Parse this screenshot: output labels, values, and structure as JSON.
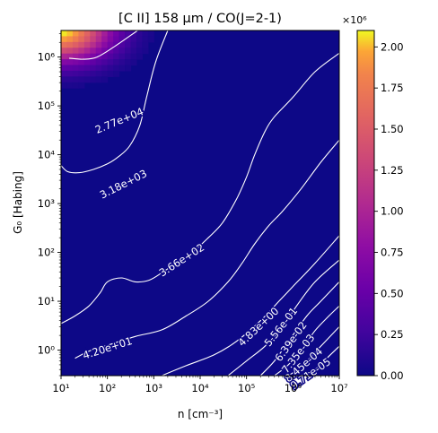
{
  "chart_data": {
    "type": "heatmap",
    "title": "[C II] 158 μm / CO(J=2-1)",
    "xlabel": "n [cm⁻³]",
    "ylabel": "G₀ [Habing]",
    "x_scale": "log",
    "y_scale": "log",
    "xlim": [
      10,
      10000000
    ],
    "ylim": [
      0.3,
      3500000
    ],
    "x_ticks": [
      {
        "value": 10,
        "label": "10¹"
      },
      {
        "value": 100,
        "label": "10²"
      },
      {
        "value": 1000,
        "label": "10³"
      },
      {
        "value": 10000,
        "label": "10⁴"
      },
      {
        "value": 100000,
        "label": "10⁵"
      },
      {
        "value": 1000000,
        "label": "10⁶"
      },
      {
        "value": 10000000,
        "label": "10⁷"
      }
    ],
    "y_ticks": [
      {
        "value": 1,
        "label": "10⁰"
      },
      {
        "value": 10,
        "label": "10¹"
      },
      {
        "value": 100,
        "label": "10²"
      },
      {
        "value": 1000,
        "label": "10³"
      },
      {
        "value": 10000,
        "label": "10⁴"
      },
      {
        "value": 100000,
        "label": "10⁵"
      },
      {
        "value": 1000000,
        "label": "10⁶"
      }
    ],
    "colorbar": {
      "colormap": "plasma",
      "range": [
        0,
        2100000
      ],
      "multiplier_label": "×10⁶",
      "ticks": [
        {
          "value": 0,
          "label": "0.00"
        },
        {
          "value": 250000,
          "label": "0.25"
        },
        {
          "value": 500000,
          "label": "0.50"
        },
        {
          "value": 750000,
          "label": "0.75"
        },
        {
          "value": 1000000,
          "label": "1.00"
        },
        {
          "value": 1250000,
          "label": "1.25"
        },
        {
          "value": 1500000,
          "label": "1.50"
        },
        {
          "value": 1750000,
          "label": "1.75"
        },
        {
          "value": 2000000,
          "label": "2.00"
        }
      ]
    },
    "peak": {
      "n": 10,
      "G0": 3500000,
      "value": 2100000
    },
    "contours": [
      {
        "label": "2.77e+04",
        "value": 27700,
        "label_at": [
          180,
          50000
        ],
        "points": [
          [
            15,
            950000
          ],
          [
            30,
            900000
          ],
          [
            60,
            1000000
          ],
          [
            150,
            1700000
          ],
          [
            450,
            3500000
          ]
        ]
      },
      {
        "label": "3.18e+03",
        "value": 3180,
        "label_at": [
          220,
          2500
        ],
        "points": [
          [
            10,
            6000
          ],
          [
            14,
            4500
          ],
          [
            25,
            4300
          ],
          [
            50,
            5000
          ],
          [
            100,
            6500
          ],
          [
            170,
            9000
          ],
          [
            300,
            15000
          ],
          [
            500,
            40000
          ],
          [
            700,
            150000
          ],
          [
            1100,
            800000
          ],
          [
            2000,
            3500000
          ]
        ]
      },
      {
        "label": "3.66e+02",
        "value": 366,
        "label_at": [
          4000,
          70
        ],
        "points": [
          [
            10,
            3.5
          ],
          [
            20,
            5
          ],
          [
            40,
            8
          ],
          [
            70,
            15
          ],
          [
            100,
            25
          ],
          [
            200,
            30
          ],
          [
            400,
            25
          ],
          [
            800,
            27
          ],
          [
            1600,
            40
          ],
          [
            3000,
            60
          ],
          [
            6000,
            90
          ],
          [
            15000,
            200
          ],
          [
            30000,
            400
          ],
          [
            60000,
            1200
          ],
          [
            100000,
            3500
          ],
          [
            150000,
            10000
          ],
          [
            250000,
            30000
          ],
          [
            400000,
            60000
          ],
          [
            1000000,
            150000
          ],
          [
            3000000,
            500000
          ],
          [
            10000000,
            1200000
          ]
        ]
      },
      {
        "label": "4.20e+01",
        "value": 42,
        "label_at": [
          100,
          1.1
        ],
        "points": [
          [
            20,
            0.68
          ],
          [
            40,
            0.95
          ],
          [
            100,
            1.25
          ],
          [
            400,
            1.9
          ],
          [
            1500,
            2.6
          ],
          [
            5000,
            5
          ],
          [
            15000,
            10
          ],
          [
            40000,
            25
          ],
          [
            80000,
            60
          ],
          [
            150000,
            150
          ],
          [
            300000,
            350
          ],
          [
            600000,
            700
          ],
          [
            1500000,
            2000
          ],
          [
            4000000,
            7000
          ],
          [
            10000000,
            20000
          ]
        ]
      },
      {
        "label": "4.83e+00",
        "value": 4.83,
        "label_at": [
          180000,
          3
        ],
        "points": [
          [
            1500,
            0.3
          ],
          [
            5000,
            0.48
          ],
          [
            20000,
            0.8
          ],
          [
            60000,
            1.5
          ],
          [
            200000,
            4
          ],
          [
            500000,
            10
          ],
          [
            1000000,
            20
          ],
          [
            3000000,
            60
          ],
          [
            10000000,
            220
          ]
        ]
      },
      {
        "label": "5.56e-01",
        "value": 0.556,
        "label_at": [
          550000,
          3
        ],
        "points": [
          [
            40000,
            0.3
          ],
          [
            100000,
            0.6
          ],
          [
            250000,
            1.2
          ],
          [
            600000,
            3
          ],
          [
            1200000,
            8
          ],
          [
            3000000,
            25
          ],
          [
            10000000,
            70
          ]
        ]
      },
      {
        "label": "6.39e-02",
        "value": 0.0639,
        "label_at": [
          900000,
          1.5
        ],
        "points": [
          [
            200000,
            0.3
          ],
          [
            400000,
            0.6
          ],
          [
            800000,
            1.5
          ],
          [
            2000000,
            5
          ],
          [
            4000000,
            10
          ],
          [
            10000000,
            25
          ]
        ]
      },
      {
        "label": "7.35e-03",
        "value": 0.00735,
        "label_at": [
          1300000,
          0.85
        ],
        "points": [
          [
            400000,
            0.3
          ],
          [
            800000,
            0.5
          ],
          [
            1500000,
            1
          ],
          [
            3000000,
            2.5
          ],
          [
            6000000,
            5
          ],
          [
            10000000,
            8
          ]
        ]
      },
      {
        "label": "8.45e-04",
        "value": 0.000845,
        "label_at": [
          1700000,
          0.5
        ],
        "points": [
          [
            800000,
            0.3
          ],
          [
            1500000,
            0.45
          ],
          [
            3000000,
            0.9
          ],
          [
            6000000,
            1.8
          ],
          [
            10000000,
            3
          ]
        ]
      },
      {
        "label": "9.71e-05",
        "value": 9.71e-05,
        "label_at": [
          2400000,
          0.33
        ],
        "points": [
          [
            1500000,
            0.3
          ],
          [
            3000000,
            0.4
          ],
          [
            6000000,
            0.75
          ],
          [
            10000000,
            1.2
          ]
        ]
      }
    ]
  }
}
